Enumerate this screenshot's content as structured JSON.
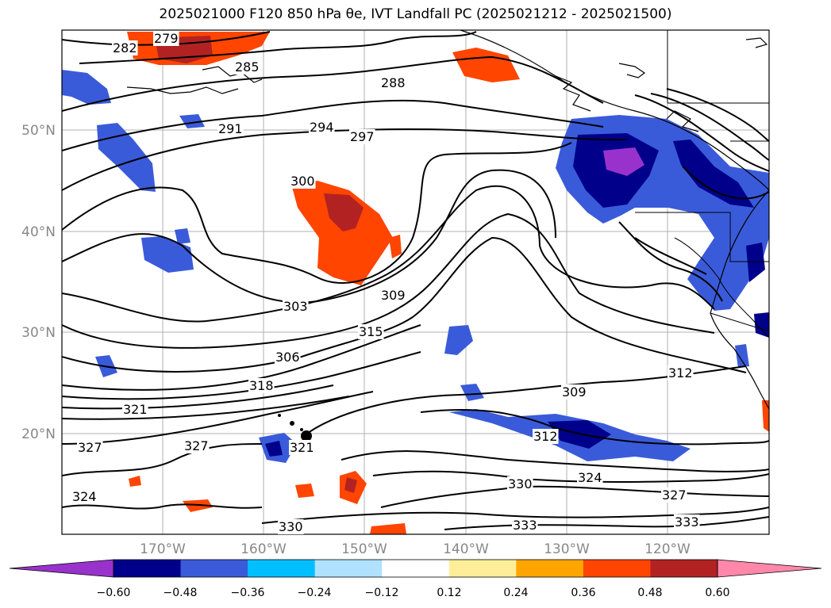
{
  "title": "2025021000 F120 850 hPa θe, IVT Landfall PC (2025021212 - 2025021500)",
  "map": {
    "lat_ticks": [
      "50°N",
      "40°N",
      "30°N",
      "20°N"
    ],
    "lon_ticks": [
      "170°W",
      "160°W",
      "150°W",
      "140°W",
      "130°W",
      "120°W"
    ],
    "contour_labels": [
      "279",
      "282",
      "285",
      "288",
      "291",
      "294",
      "297",
      "300",
      "303",
      "306",
      "309",
      "312",
      "312",
      "315",
      "318",
      "321",
      "321",
      "324",
      "324",
      "327",
      "327",
      "327",
      "330",
      "330",
      "333",
      "333",
      "309"
    ]
  },
  "colorbar": {
    "colors": [
      "#9932cc",
      "#00008b",
      "#3a5bd9",
      "#00bfff",
      "#b0e2ff",
      "#ffffff",
      "#ffee99",
      "#ffa500",
      "#ff4500",
      "#b22222",
      "#ff88aa"
    ],
    "tick_labels": [
      "−0.60",
      "−0.48",
      "−0.36",
      "−0.24",
      "−0.12",
      "0.12",
      "0.24",
      "0.36",
      "0.48",
      "0.60"
    ]
  }
}
